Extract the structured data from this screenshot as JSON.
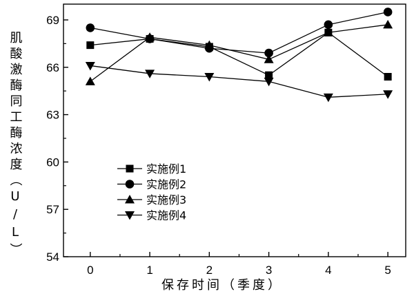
{
  "chart_data": {
    "type": "line",
    "xlabel": "保存时间（季度）",
    "ylabel": "肌酸激酶同工酶浓度（U/L）",
    "x": [
      0,
      1,
      2,
      3,
      4,
      5
    ],
    "xlim": [
      -0.45,
      5.3
    ],
    "ylim": [
      54,
      70
    ],
    "yticks": [
      54,
      57,
      60,
      63,
      66,
      69
    ],
    "xticks": [
      0,
      1,
      2,
      3,
      4,
      5
    ],
    "grid": false,
    "legend_position": "center-left",
    "series": [
      {
        "name": "实施例1",
        "marker": "square",
        "values": [
          67.4,
          67.8,
          67.3,
          65.5,
          68.2,
          65.4
        ]
      },
      {
        "name": "实施例2",
        "marker": "circle",
        "values": [
          68.5,
          67.8,
          67.2,
          66.9,
          68.7,
          69.5
        ]
      },
      {
        "name": "实施例3",
        "marker": "triangle-up",
        "values": [
          65.1,
          67.9,
          67.4,
          66.5,
          68.2,
          68.7
        ]
      },
      {
        "name": "实施例4",
        "marker": "triangle-down",
        "values": [
          66.1,
          65.6,
          65.4,
          65.1,
          64.1,
          64.3
        ]
      }
    ]
  }
}
